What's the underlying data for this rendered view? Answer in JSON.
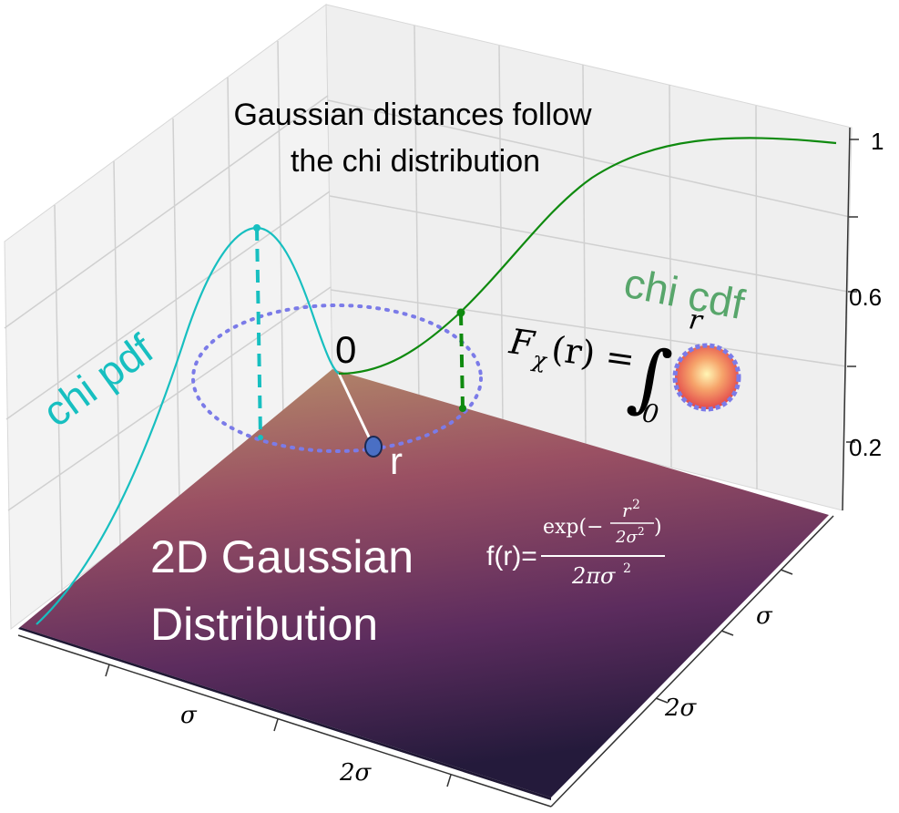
{
  "title_line1": "Gaussian distances follow",
  "title_line2": "the chi distribution",
  "pdf_label": "chi pdf",
  "cdf_label": "chi cdf",
  "origin_label": "0",
  "r_label": "r",
  "surface_label_line1": "2D Gaussian",
  "surface_label_line2": "Distribution",
  "cdf_formula": {
    "lhs_F": "F",
    "lhs_sub": "χ",
    "lhs_arg": "(r) =",
    "integral": "∫",
    "upper": "r",
    "lower": "0"
  },
  "density_formula": {
    "lhs": "f(r)=",
    "num_exp": "exp(−",
    "num_r2": "r",
    "num_sup": "2",
    "num_den": "2σ",
    "num_den_sup": "2",
    "num_close": ")",
    "den": "2πσ",
    "den_sup": "2"
  },
  "z_ticks": [
    "1",
    "0.6",
    "0.2"
  ],
  "x_ticks": [
    "σ",
    "2σ"
  ],
  "y_ticks": [
    "σ",
    "2σ"
  ],
  "colors": {
    "pdf": "#17bfc0",
    "cdf": "#0f8a0f",
    "cdf_label": "#58a66b",
    "circle": "#7b7be8",
    "point": "#4a6fc4",
    "grid": "#cfcfcf",
    "pane": "#f0f0f0",
    "surface_top": "#b7946a",
    "surface_mid": "#8a3f66",
    "surface_bottom": "#2c1a45"
  }
}
